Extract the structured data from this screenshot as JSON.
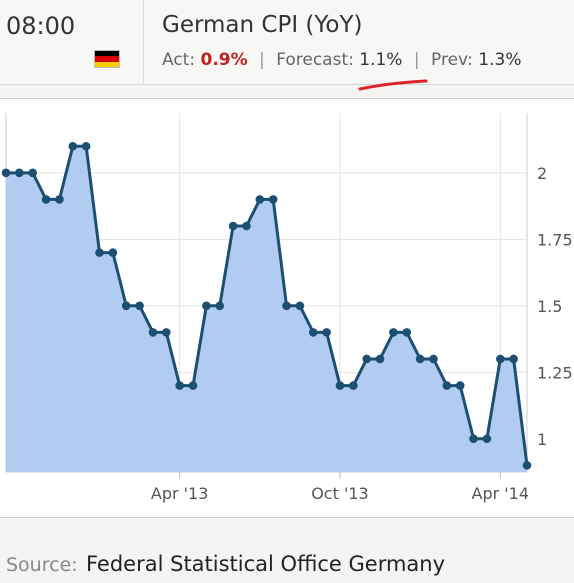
{
  "header": {
    "time": "08:00",
    "title": "German CPI (YoY)",
    "flag_colors": [
      "#000000",
      "#dd0000",
      "#ffce00"
    ],
    "act_label": "Act:",
    "act_value": "0.9%",
    "forecast_label": "Forecast:",
    "forecast_value": "1.1%",
    "prev_label": "Prev:",
    "prev_value": "1.3%",
    "separator": "|",
    "act_color": "#c0221f",
    "pen_mark_color": "#d9262c"
  },
  "chart_data": {
    "type": "area",
    "y": [
      2,
      2,
      2,
      1.9,
      1.9,
      2.1,
      2.1,
      1.7,
      1.7,
      1.5,
      1.5,
      1.4,
      1.4,
      1.2,
      1.2,
      1.5,
      1.5,
      1.8,
      1.8,
      1.9,
      1.9,
      1.5,
      1.5,
      1.4,
      1.4,
      1.2,
      1.2,
      1.3,
      1.3,
      1.4,
      1.4,
      1.3,
      1.3,
      1.2,
      1.2,
      1.0,
      1.0,
      1.3,
      1.3,
      0.9
    ],
    "x_tick_labels": [
      "Apr '13",
      "Oct '13",
      "Apr '14"
    ],
    "x_tick_index": [
      13.0,
      25.0,
      37.0
    ],
    "y_ticks": [
      1,
      1.25,
      1.5,
      1.75,
      2
    ],
    "y_tick_labels": [
      "1",
      "1.25",
      "1.5",
      "1.75",
      "2"
    ],
    "ylim": [
      0.875,
      2.225
    ],
    "grid": true,
    "y_axis_position": "right",
    "line_color": "#1d4f73",
    "fill_color": "#a9c7ee"
  },
  "footer": {
    "source_label": "Source:",
    "source_value": "Federal Statistical Office Germany"
  }
}
